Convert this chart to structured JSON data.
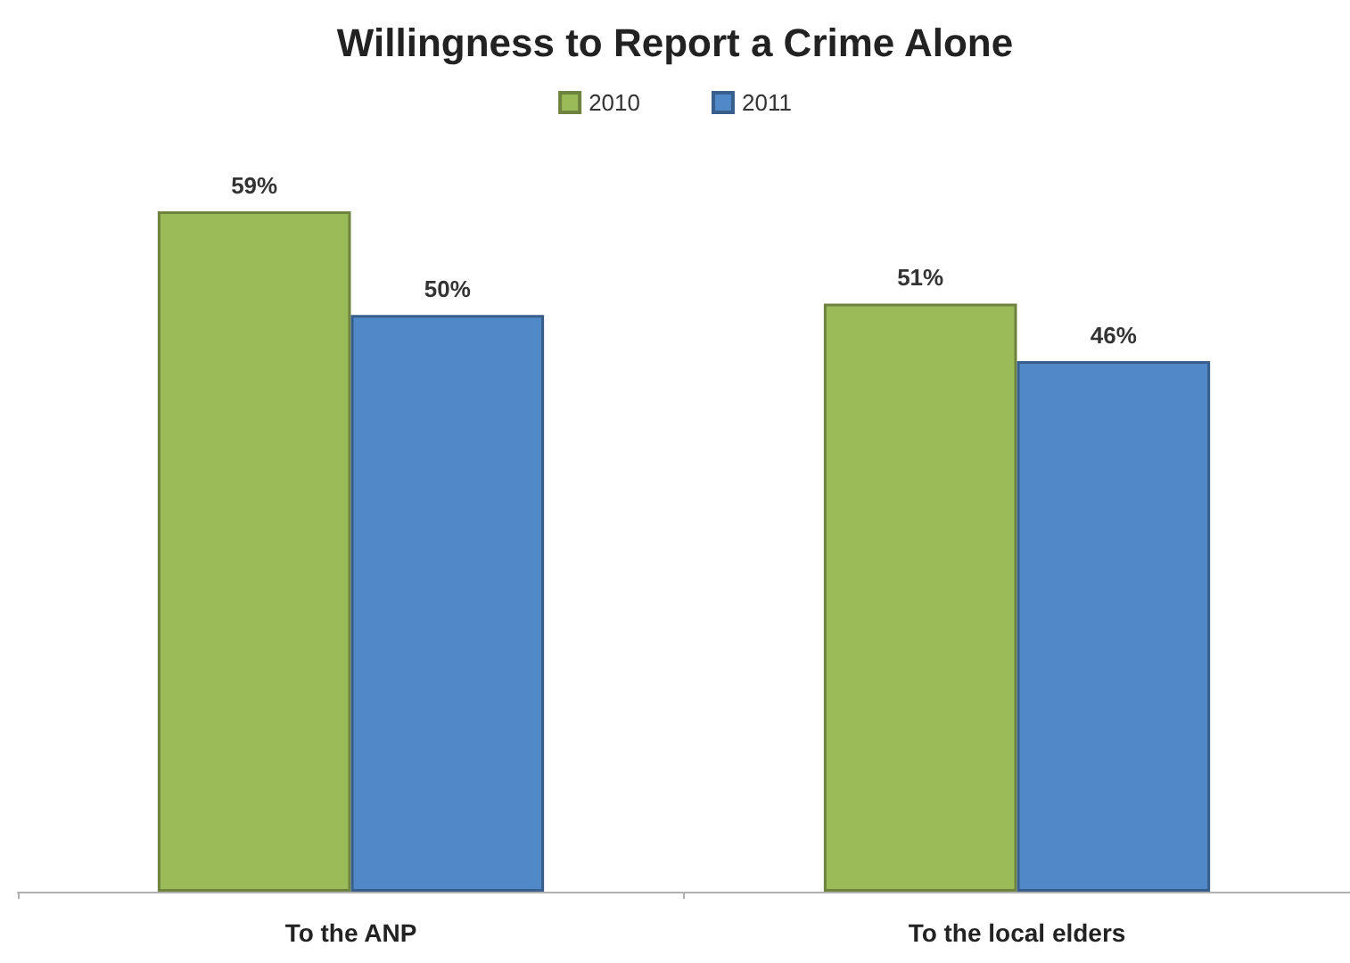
{
  "chart_data": {
    "type": "bar",
    "title": "Willingness to Report a Crime Alone",
    "categories": [
      "To the ANP",
      "To the local elders"
    ],
    "series": [
      {
        "name": "2010",
        "color": "#9bbb59",
        "values": [
          59,
          51
        ],
        "value_labels": [
          "59%",
          "51%"
        ]
      },
      {
        "name": "2011",
        "color": "#5088c8",
        "values": [
          50,
          46
        ],
        "value_labels": [
          "50%",
          "46%"
        ]
      }
    ],
    "legend": "top",
    "tick_labels": "x"
  }
}
